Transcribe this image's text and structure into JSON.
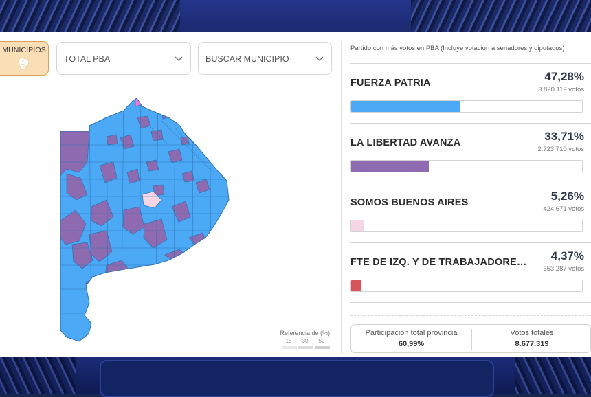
{
  "controls": {
    "municipios_label": "MUNICIPIOS",
    "region_select_value": "TOTAL PBA",
    "municipio_search_placeholder": "BUSCAR MUNICIPIO"
  },
  "legend": {
    "title": "Referencia de (%)",
    "ticks": [
      "15",
      "30",
      "50"
    ]
  },
  "results": {
    "subtitle": "Partido con más votos en PBA (Incluye votación a senadores y diputados)",
    "parties": [
      {
        "name": "FUERZA PATRIA",
        "pct": "47,28%",
        "votes": "3.820.119 votos",
        "share": 0.4728,
        "color": "#4ba9f5"
      },
      {
        "name": "LA LIBERTAD AVANZA",
        "pct": "33,71%",
        "votes": "2.723.710 votos",
        "share": 0.3371,
        "color": "#8e6bb1"
      },
      {
        "name": "SOMOS BUENOS AIRES",
        "pct": "5,26%",
        "votes": "424.671 votos",
        "share": 0.0526,
        "color": "#f6d6e4"
      },
      {
        "name": "FTE DE IZQ. Y DE TRABAJADORE…",
        "pct": "4,37%",
        "votes": "353.287 votos",
        "share": 0.0437,
        "color": "#d9535a"
      }
    ]
  },
  "summary": {
    "participation_label": "Participación total provincia",
    "participation_value": "60,99%",
    "total_votes_label": "Votos totales",
    "total_votes_value": "8.677.319"
  },
  "map_colors": {
    "fuerza_patria": "#4ba9f5",
    "libertad_avanza": "#8e6bb1",
    "somos_buenos_aires": "#f6d6e4",
    "other": "#f07ad6",
    "border": "#2f6fb0"
  }
}
